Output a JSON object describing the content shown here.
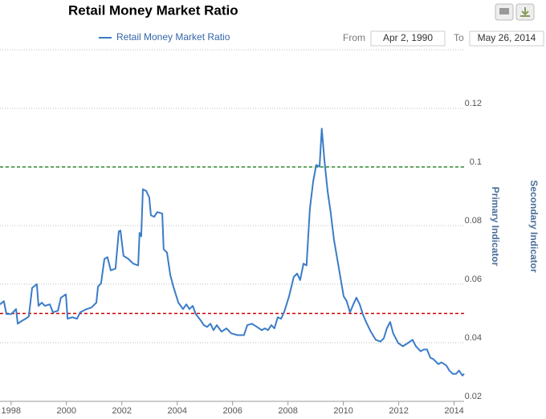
{
  "chart_data": {
    "type": "line",
    "title": "Retail Money Market Ratio",
    "range_from_label": "From",
    "range_from": "Apr 2, 1990",
    "range_to_label": "To",
    "range_to": "May 26, 2014",
    "y_axis_label": "Primary Indicator",
    "y2_axis_label": "Secondary Indicator",
    "xlim": [
      1997.6,
      2014.36
    ],
    "xticks": [
      1998,
      2000,
      2002,
      2004,
      2006,
      2008,
      2010,
      2012,
      2014
    ],
    "ylim": [
      0.02,
      0.14
    ],
    "yticks": [
      0.02,
      0.04,
      0.06,
      0.08,
      0.1,
      0.12
    ],
    "grid": true,
    "reference_lines": [
      {
        "value": 0.1,
        "color": "#2e8b2e"
      },
      {
        "value": 0.05,
        "color": "#cc0000"
      }
    ],
    "series": [
      {
        "name": "Retail Money Market Ratio",
        "color": "#3a7cc8",
        "x": [
          1997.6,
          1997.74,
          1997.83,
          1998.01,
          1998.18,
          1998.24,
          1998.41,
          1998.53,
          1998.64,
          1998.76,
          1998.93,
          1998.99,
          1999.11,
          1999.22,
          1999.4,
          1999.51,
          1999.69,
          1999.8,
          1999.98,
          2000.04,
          2000.21,
          2000.38,
          2000.5,
          2000.73,
          2000.9,
          2001.08,
          2001.14,
          2001.25,
          2001.37,
          2001.48,
          2001.6,
          2001.77,
          2001.89,
          2001.95,
          2002.06,
          2002.24,
          2002.41,
          2002.59,
          2002.64,
          2002.7,
          2002.76,
          2002.88,
          2002.99,
          2003.05,
          2003.17,
          2003.28,
          2003.46,
          2003.51,
          2003.63,
          2003.75,
          2003.86,
          2004.04,
          2004.21,
          2004.33,
          2004.44,
          2004.56,
          2004.67,
          2004.85,
          2004.96,
          2005.08,
          2005.2,
          2005.31,
          2005.43,
          2005.6,
          2005.78,
          2005.95,
          2006.18,
          2006.41,
          2006.53,
          2006.7,
          2006.88,
          2007.05,
          2007.17,
          2007.28,
          2007.4,
          2007.51,
          2007.63,
          2007.75,
          2007.86,
          2008.04,
          2008.21,
          2008.33,
          2008.44,
          2008.56,
          2008.67,
          2008.79,
          2008.91,
          2009.02,
          2009.14,
          2009.22,
          2009.31,
          2009.43,
          2009.54,
          2009.66,
          2009.78,
          2009.89,
          2010.01,
          2010.12,
          2010.24,
          2010.36,
          2010.47,
          2010.59,
          2010.7,
          2010.82,
          2010.99,
          2011.17,
          2011.34,
          2011.46,
          2011.57,
          2011.69,
          2011.8,
          2011.98,
          2012.15,
          2012.33,
          2012.5,
          2012.62,
          2012.79,
          2012.91,
          2013.02,
          2013.14,
          2013.25,
          2013.43,
          2013.54,
          2013.72,
          2013.83,
          2013.95,
          2014.07,
          2014.18,
          2014.3,
          2014.36
        ],
        "values": [
          0.0531,
          0.0542,
          0.0498,
          0.0498,
          0.0515,
          0.0465,
          0.0476,
          0.0482,
          0.049,
          0.0587,
          0.06,
          0.0526,
          0.0537,
          0.0526,
          0.0531,
          0.0504,
          0.0509,
          0.0554,
          0.0565,
          0.0482,
          0.0487,
          0.0482,
          0.0504,
          0.0515,
          0.052,
          0.0537,
          0.0592,
          0.0603,
          0.0686,
          0.0692,
          0.0647,
          0.0653,
          0.078,
          0.0783,
          0.0697,
          0.0686,
          0.067,
          0.0664,
          0.0775,
          0.0763,
          0.0924,
          0.0918,
          0.0896,
          0.0835,
          0.083,
          0.0846,
          0.0841,
          0.0719,
          0.0708,
          0.0631,
          0.0592,
          0.0537,
          0.0515,
          0.0531,
          0.0515,
          0.0526,
          0.0498,
          0.0476,
          0.046,
          0.0454,
          0.0465,
          0.0443,
          0.046,
          0.0438,
          0.0449,
          0.0432,
          0.0426,
          0.0426,
          0.046,
          0.0465,
          0.0454,
          0.0443,
          0.0449,
          0.0443,
          0.046,
          0.0449,
          0.0487,
          0.0482,
          0.0504,
          0.0559,
          0.0625,
          0.0636,
          0.0614,
          0.067,
          0.0664,
          0.0857,
          0.0951,
          0.1007,
          0.1001,
          0.1131,
          0.1029,
          0.0918,
          0.0846,
          0.0752,
          0.0686,
          0.0625,
          0.0559,
          0.0542,
          0.0504,
          0.0531,
          0.0554,
          0.0531,
          0.0498,
          0.0471,
          0.0438,
          0.041,
          0.0404,
          0.0415,
          0.0449,
          0.0471,
          0.0432,
          0.0399,
          0.0388,
          0.0399,
          0.041,
          0.0388,
          0.0371,
          0.0377,
          0.0377,
          0.0349,
          0.0344,
          0.0327,
          0.0333,
          0.0322,
          0.0305,
          0.0294,
          0.0294,
          0.0305,
          0.0288,
          0.0294
        ]
      }
    ]
  }
}
